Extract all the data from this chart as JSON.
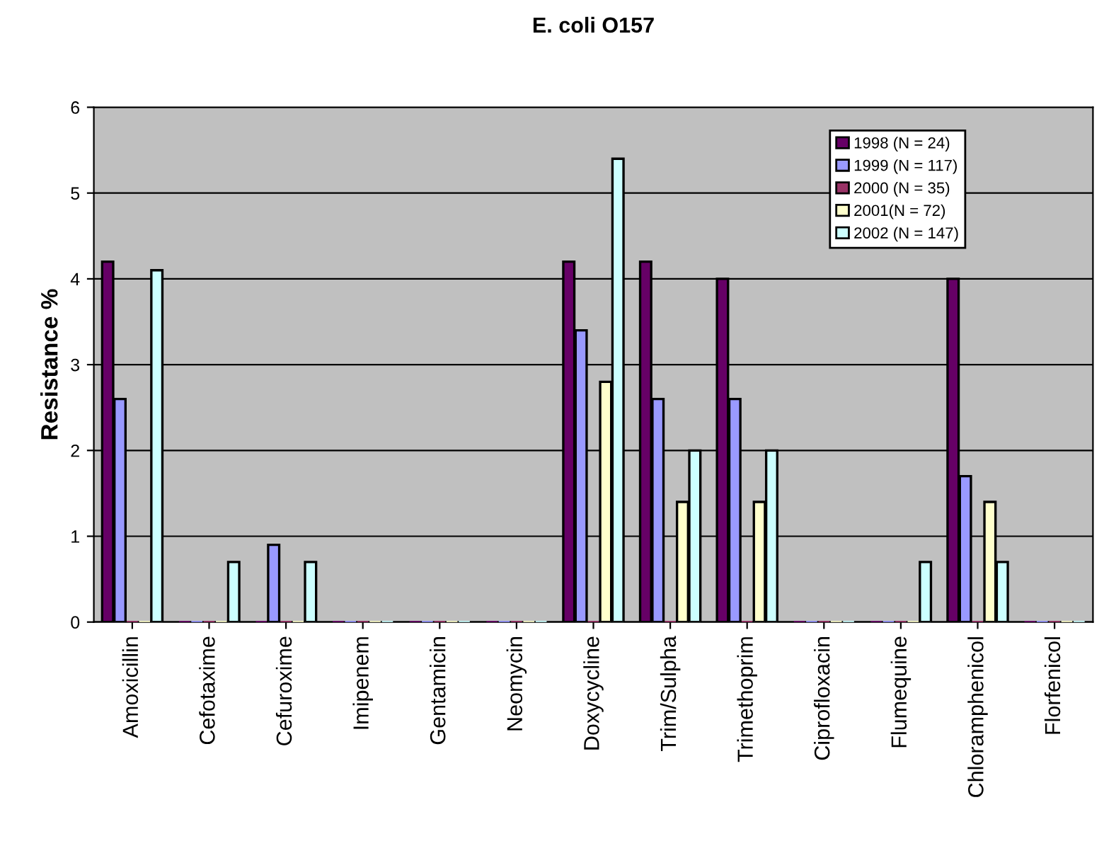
{
  "chart_data": {
    "type": "bar",
    "title": "E. coli O157",
    "ylabel": "Resistance %",
    "categories": [
      "Amoxicillin",
      "Cefotaxime",
      "Cefuroxime",
      "Imipenem",
      "Gentamicin",
      "Neomycin",
      "Doxycycline",
      "Trim/Sulpha",
      "Trimethoprim",
      "Ciprofloxacin",
      "Flumequine",
      "Chloramphenicol",
      "Florfenicol"
    ],
    "series": [
      {
        "name": "1998 (N = 24)",
        "color": "#660066",
        "values": [
          4.2,
          0,
          0,
          0,
          0,
          0,
          4.2,
          4.2,
          4.0,
          0,
          0,
          4.0,
          0
        ]
      },
      {
        "name": "1999 (N = 117)",
        "color": "#9999ff",
        "values": [
          2.6,
          0,
          0.9,
          0,
          0,
          0,
          3.4,
          2.6,
          2.6,
          0,
          0,
          1.7,
          0
        ]
      },
      {
        "name": "2000 (N = 35)",
        "color": "#993366",
        "values": [
          0,
          0,
          0,
          0,
          0,
          0,
          0,
          0,
          0,
          0,
          0,
          0,
          0
        ]
      },
      {
        "name": "2001(N = 72)",
        "color": "#ffffcc",
        "values": [
          0,
          0,
          0,
          0,
          0,
          0,
          2.8,
          1.4,
          1.4,
          0,
          0,
          1.4,
          0
        ]
      },
      {
        "name": "2002 (N = 147)",
        "color": "#ccffff",
        "values": [
          4.1,
          0.7,
          0.7,
          0,
          0,
          0,
          5.4,
          2.0,
          2.0,
          0,
          0.7,
          0.7,
          0
        ]
      }
    ],
    "ylim": [
      0,
      6
    ],
    "yticks": [
      0,
      1,
      2,
      3,
      4,
      5,
      6
    ],
    "grid": "y",
    "legend": "top right"
  }
}
